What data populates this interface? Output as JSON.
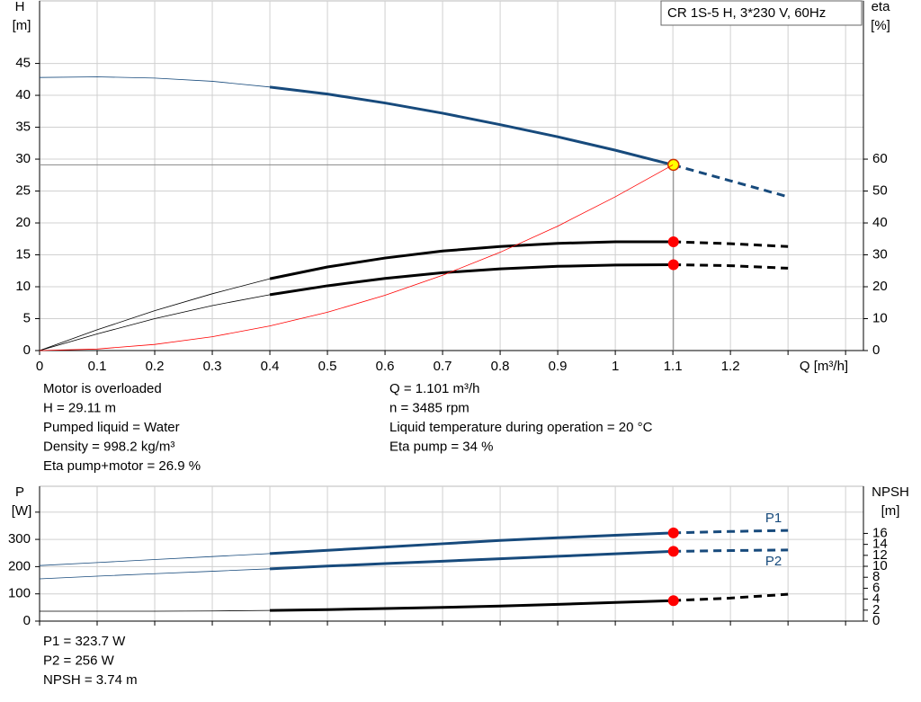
{
  "chart_data": [
    {
      "type": "line",
      "title": "CR 1S-5 H, 3*230 V, 60Hz",
      "y_label": "H",
      "y_unit": "[m]",
      "y2_label": "eta",
      "y2_unit": "[%]",
      "x_label": "Q [m³/h]",
      "xlim": [
        0,
        1.431
      ],
      "ylim": [
        0,
        54.8
      ],
      "y2lim": [
        0,
        109.6
      ],
      "xticks": [
        0,
        0.1,
        0.2,
        0.3,
        0.4,
        0.5,
        0.6,
        0.7,
        0.8,
        0.9,
        1.0,
        1.1,
        1.2
      ],
      "xgrid_extra": [
        1.3,
        1.4
      ],
      "yticks": [
        0,
        5,
        10,
        15,
        20,
        25,
        30,
        35,
        40,
        45
      ],
      "y2ticks": [
        0,
        10,
        20,
        30,
        40,
        50,
        60
      ],
      "grid": true,
      "x": [
        0,
        0.1,
        0.2,
        0.3,
        0.4,
        0.5,
        0.6,
        0.7,
        0.8,
        0.9,
        1.0,
        1.1,
        1.2,
        1.3
      ],
      "segment_x": [
        0.4,
        1.1
      ],
      "op_x": 1.101,
      "series": [
        {
          "color": "#174a7c",
          "style": "duty",
          "marker_color": "#ffff00",
          "op_value": 29.11,
          "reference_lines": true,
          "values": [
            42.8,
            42.9,
            42.7,
            42.2,
            41.3,
            40.2,
            38.8,
            37.2,
            35.4,
            33.5,
            31.4,
            29.1,
            26.6,
            24.1
          ]
        },
        {
          "color": "#000000",
          "style": "duty",
          "axis": "y2",
          "marker_color": "#ff0000",
          "op_value": 34.1,
          "values": [
            0,
            6.5,
            12.5,
            17.8,
            22.5,
            26.2,
            29.0,
            31.2,
            32.6,
            33.6,
            34.1,
            34.1,
            33.5,
            32.6
          ]
        },
        {
          "color": "#000000",
          "style": "duty",
          "axis": "y2",
          "marker_color": "#ff0000",
          "op_value": 26.9,
          "values": [
            0,
            5.2,
            10.0,
            14.1,
            17.5,
            20.3,
            22.6,
            24.4,
            25.6,
            26.4,
            26.8,
            26.9,
            26.6,
            25.8
          ]
        },
        {
          "color": "#ff0000",
          "style": "plain",
          "values": [
            0,
            0.24,
            0.96,
            2.17,
            3.85,
            6.0,
            8.66,
            11.8,
            15.4,
            19.5,
            24.1,
            29.1,
            null,
            null
          ]
        }
      ],
      "info_left": [
        "Motor is overloaded",
        "H = 29.11 m",
        "Pumped liquid = Water",
        "Density = 998.2 kg/m³",
        "Eta pump+motor = 26.9 %"
      ],
      "info_right": [
        "Q = 1.101 m³/h",
        "n = 3485 rpm",
        "Liquid temperature during operation = 20 °C",
        "Eta pump = 34 %"
      ]
    },
    {
      "type": "line",
      "y_label": "P",
      "y_unit": "[W]",
      "y2_label": "NPSH",
      "y2_unit": "[m]",
      "xlim": [
        0,
        1.431
      ],
      "ylim": [
        0,
        495
      ],
      "y2lim": [
        0,
        24.6
      ],
      "xgrid_extra": [
        0,
        0.1,
        0.2,
        0.3,
        0.4,
        0.5,
        0.6,
        0.7,
        0.8,
        0.9,
        1.0,
        1.1,
        1.2,
        1.3,
        1.4
      ],
      "yticks": [
        0,
        100,
        200,
        300
      ],
      "ygrid_extra": [
        400
      ],
      "y2ticks": [
        0,
        2,
        4,
        6,
        8,
        10,
        12,
        14,
        16
      ],
      "grid": true,
      "x": [
        0,
        0.1,
        0.2,
        0.3,
        0.4,
        0.5,
        0.6,
        0.7,
        0.8,
        0.9,
        1.0,
        1.1,
        1.2,
        1.3
      ],
      "segment_x": [
        0.4,
        1.1
      ],
      "op_x": 1.101,
      "series": [
        {
          "name": "P1",
          "color": "#174a7c",
          "style": "duty",
          "marker_color": "#ff0000",
          "op_value": 323.7,
          "values": [
            204,
            215,
            226,
            237,
            248,
            260,
            272,
            284,
            296,
            306,
            315,
            323.7,
            329,
            333
          ]
        },
        {
          "name": "P2",
          "color": "#174a7c",
          "style": "duty",
          "marker_color": "#ff0000",
          "op_value": 256,
          "values": [
            155,
            165,
            174,
            183,
            192,
            202,
            211,
            220,
            229,
            238,
            247,
            256,
            259,
            261
          ]
        },
        {
          "color": "#000000",
          "style": "duty",
          "axis": "y2",
          "marker_color": "#ff0000",
          "op_value": 3.74,
          "values": [
            1.8,
            1.8,
            1.8,
            1.85,
            1.95,
            2.1,
            2.3,
            2.5,
            2.75,
            3.05,
            3.4,
            3.74,
            4.2,
            4.9
          ]
        }
      ],
      "info_left": [
        "P1 = 323.7 W",
        "P2 = 256 W",
        "NPSH = 3.74 m"
      ]
    }
  ]
}
